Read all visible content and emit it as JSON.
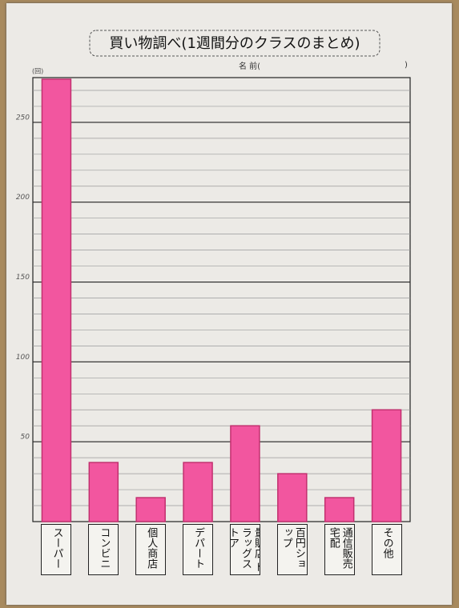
{
  "chart_data": {
    "type": "bar",
    "title": "買い物調べ(1週間分のクラスのまとめ)",
    "subtitle": "名 前(",
    "subtitle_end": ")",
    "y_unit": "(回)",
    "categories": [
      "スーパー",
      "コンビニ",
      "個人商店",
      "デパート",
      "量販店 ドラッグストア",
      "百円ショップ",
      "通信販売 宅配",
      "その他"
    ],
    "values": [
      277,
      37,
      15,
      37,
      60,
      30,
      15,
      70
    ],
    "color": "#f2569f",
    "ylim": [
      0,
      278
    ],
    "yticks": [
      50,
      100,
      150,
      200,
      250
    ],
    "minor_yticks": [
      10,
      20,
      30,
      40,
      60,
      70,
      80,
      90,
      110,
      120,
      130,
      140,
      160,
      170,
      180,
      190,
      210,
      220,
      230,
      240,
      260,
      270
    ],
    "grid": true
  }
}
